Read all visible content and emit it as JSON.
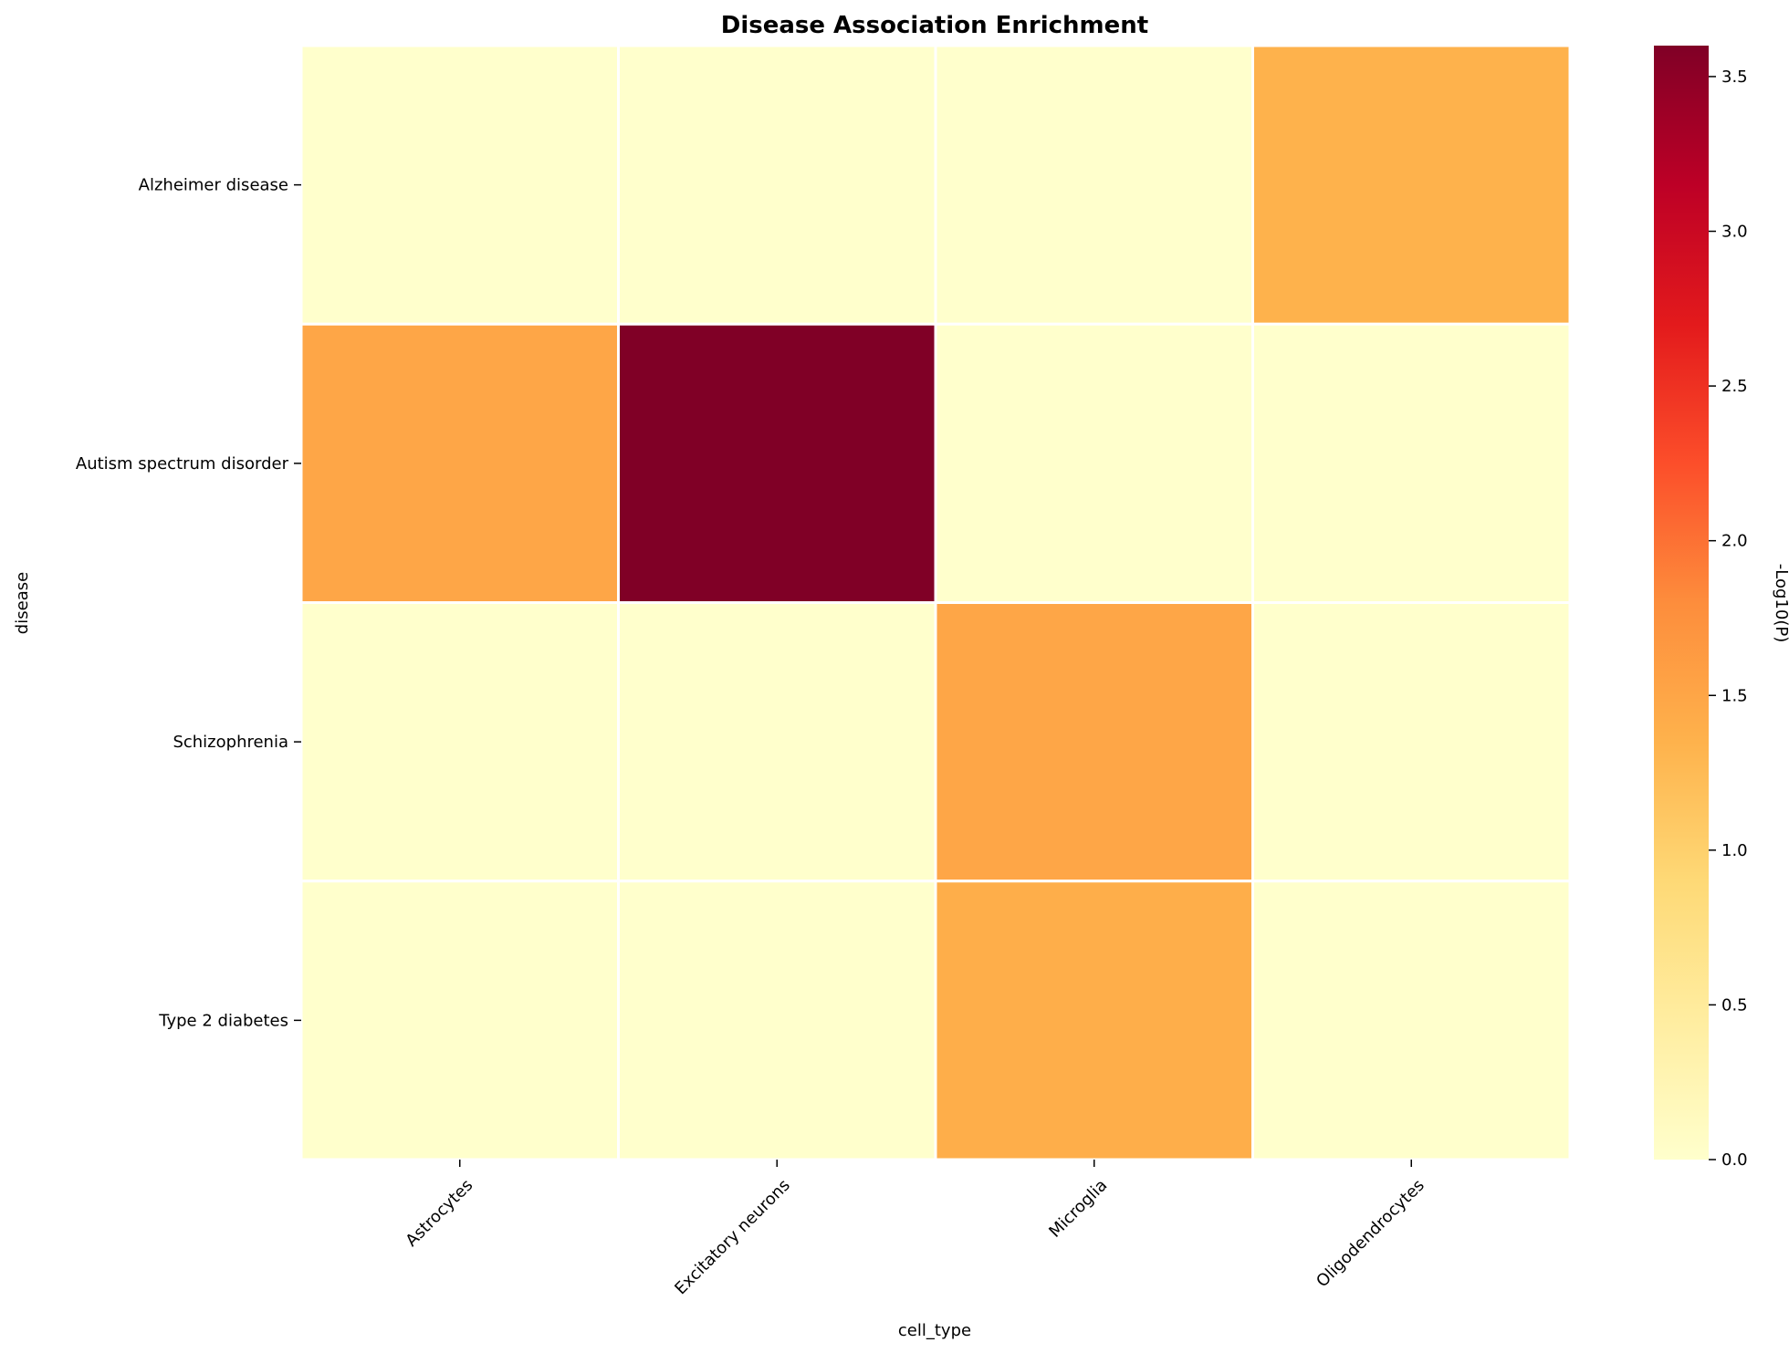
{
  "chart_data": {
    "type": "heatmap",
    "title": "Disease Association Enrichment",
    "xlabel": "cell_type",
    "ylabel": "disease",
    "x_categories": [
      "Astrocytes",
      "Excitatory neurons",
      "Microglia",
      "Oligodendrocytes"
    ],
    "y_categories": [
      "Alzheimer disease",
      "Autism spectrum disorder",
      "Schizophrenia",
      "Type 2 diabetes"
    ],
    "values": [
      [
        0.0,
        0.0,
        0.0,
        1.35
      ],
      [
        1.5,
        3.6,
        0.0,
        0.0
      ],
      [
        0.0,
        0.0,
        1.5,
        0.0
      ],
      [
        0.0,
        0.0,
        1.4,
        0.0
      ]
    ],
    "colorbar": {
      "label": "-Log10(P)",
      "min": 0.0,
      "max": 3.6,
      "ticks": [
        "0.0",
        "0.5",
        "1.0",
        "1.5",
        "2.0",
        "2.5",
        "3.0",
        "3.5"
      ],
      "colormap": "YlOrRd"
    },
    "grid": false
  }
}
